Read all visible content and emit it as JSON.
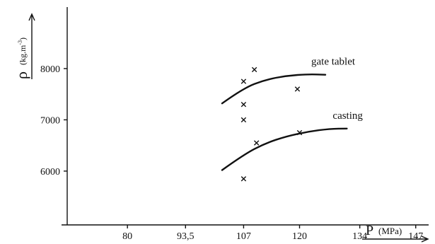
{
  "chart_data": {
    "type": "scatter",
    "xlabel": "P",
    "xlabel_unit": "(MPa)",
    "ylabel": "ρ",
    "ylabel_unit": "(kg.m",
    "ylabel_exp": "-3",
    "ylabel_close": ")",
    "xlim": [
      66,
      150
    ],
    "ylim": [
      4950,
      9200
    ],
    "x_ticks": [
      {
        "value": 80,
        "label": "80"
      },
      {
        "value": 93.5,
        "label": "93,5"
      },
      {
        "value": 107,
        "label": "107"
      },
      {
        "value": 120,
        "label": "120"
      },
      {
        "value": 134,
        "label": "134"
      },
      {
        "value": 147,
        "label": "147"
      }
    ],
    "y_ticks": [
      {
        "value": 6000,
        "label": "6000"
      },
      {
        "value": 7000,
        "label": "7000"
      },
      {
        "value": 8000,
        "label": "8000"
      }
    ],
    "grid": false,
    "series": [
      {
        "name": "gate tablet",
        "points": [
          {
            "x": 107,
            "y": 7750
          },
          {
            "x": 109.5,
            "y": 7980
          },
          {
            "x": 107,
            "y": 7300
          },
          {
            "x": 107,
            "y": 7000
          },
          {
            "x": 119.5,
            "y": 7600
          }
        ],
        "trend": [
          {
            "x": 102,
            "y": 7320
          },
          {
            "x": 107,
            "y": 7620
          },
          {
            "x": 112,
            "y": 7780
          },
          {
            "x": 117,
            "y": 7860
          },
          {
            "x": 122,
            "y": 7890
          },
          {
            "x": 126,
            "y": 7880
          }
        ]
      },
      {
        "name": "casting",
        "points": [
          {
            "x": 110,
            "y": 6550
          },
          {
            "x": 107,
            "y": 5850
          },
          {
            "x": 120,
            "y": 6750
          }
        ],
        "trend": [
          {
            "x": 102,
            "y": 6020
          },
          {
            "x": 107,
            "y": 6320
          },
          {
            "x": 112,
            "y": 6540
          },
          {
            "x": 117,
            "y": 6680
          },
          {
            "x": 122,
            "y": 6770
          },
          {
            "x": 127,
            "y": 6825
          },
          {
            "x": 131,
            "y": 6830
          }
        ]
      }
    ]
  }
}
